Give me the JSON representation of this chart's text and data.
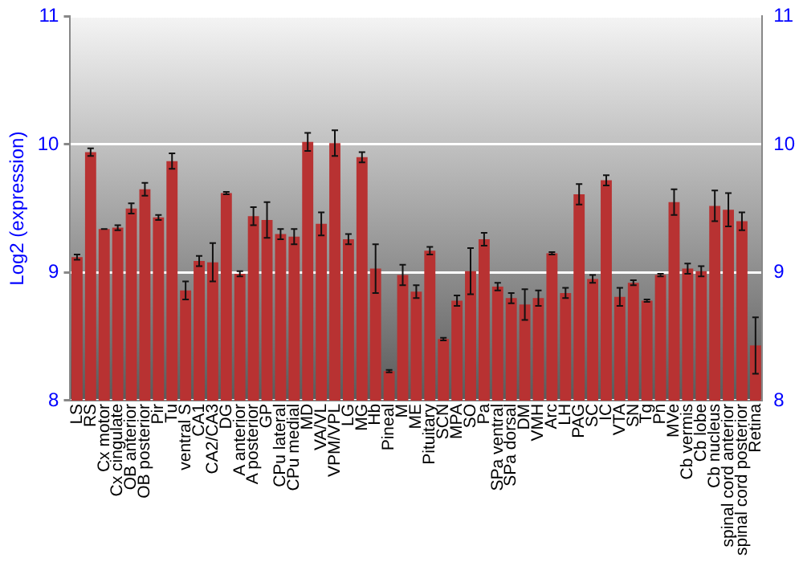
{
  "chart_data": {
    "type": "bar",
    "ylabel": "Log2 (expression)",
    "categories": [
      "LS",
      "RS",
      "Cx motor",
      "Cx cingulate",
      "OB anterior",
      "OB posterior",
      "Pir",
      "Tu",
      "ventral S",
      "CA1",
      "CA2/CA3",
      "DG",
      "A anterior",
      "A posterior",
      "GP",
      "CPu lateral",
      "CPu medial",
      "MD",
      "VA/VL",
      "VPM/VPL",
      "LG",
      "MG",
      "Hb",
      "Pineal",
      "M",
      "ME",
      "Pituitary",
      "SCN",
      "MPA",
      "SO",
      "Pa",
      "SPa ventral",
      "SPa dorsal",
      "DM",
      "VMH",
      "Arc",
      "LH",
      "PAG",
      "SC",
      "IC",
      "VTA",
      "SN",
      "Tg",
      "Pn",
      "MVe",
      "Cb vermis",
      "Cb lobe",
      "Cb nucleus",
      "spinal cord anterior",
      "spinal cord posterior",
      "Retina"
    ],
    "values": [
      9.12,
      9.94,
      9.34,
      9.35,
      9.5,
      9.65,
      9.43,
      9.87,
      8.86,
      9.09,
      9.08,
      9.62,
      8.99,
      9.44,
      9.41,
      9.3,
      9.28,
      10.02,
      9.38,
      10.01,
      9.26,
      9.9,
      9.03,
      8.23,
      8.98,
      8.85,
      9.17,
      8.48,
      8.78,
      9.01,
      9.26,
      8.89,
      8.8,
      8.75,
      8.8,
      9.15,
      8.84,
      9.61,
      8.95,
      9.72,
      8.81,
      8.92,
      8.78,
      8.98,
      9.55,
      9.03,
      9.01,
      9.52,
      9.49,
      9.4,
      8.43
    ],
    "errors": [
      0.02,
      0.03,
      0,
      0.02,
      0.04,
      0.05,
      0.02,
      0.06,
      0.07,
      0.04,
      0.15,
      0.01,
      0.02,
      0.07,
      0.14,
      0.04,
      0.06,
      0.07,
      0.09,
      0.1,
      0.04,
      0.04,
      0.19,
      0.01,
      0.08,
      0.05,
      0.03,
      0.01,
      0.04,
      0.18,
      0.05,
      0.03,
      0.04,
      0.12,
      0.06,
      0.01,
      0.04,
      0.08,
      0.03,
      0.04,
      0.07,
      0.02,
      0.01,
      0.01,
      0.1,
      0.04,
      0.04,
      0.12,
      0.13,
      0.07,
      0.22
    ],
    "color": "#b83232",
    "ylim": [
      8,
      11
    ],
    "yticks": [
      8,
      9,
      10,
      11
    ],
    "y2lim": [
      8,
      11
    ],
    "y2ticks": [
      8,
      9,
      10,
      11
    ],
    "grid": "y"
  }
}
